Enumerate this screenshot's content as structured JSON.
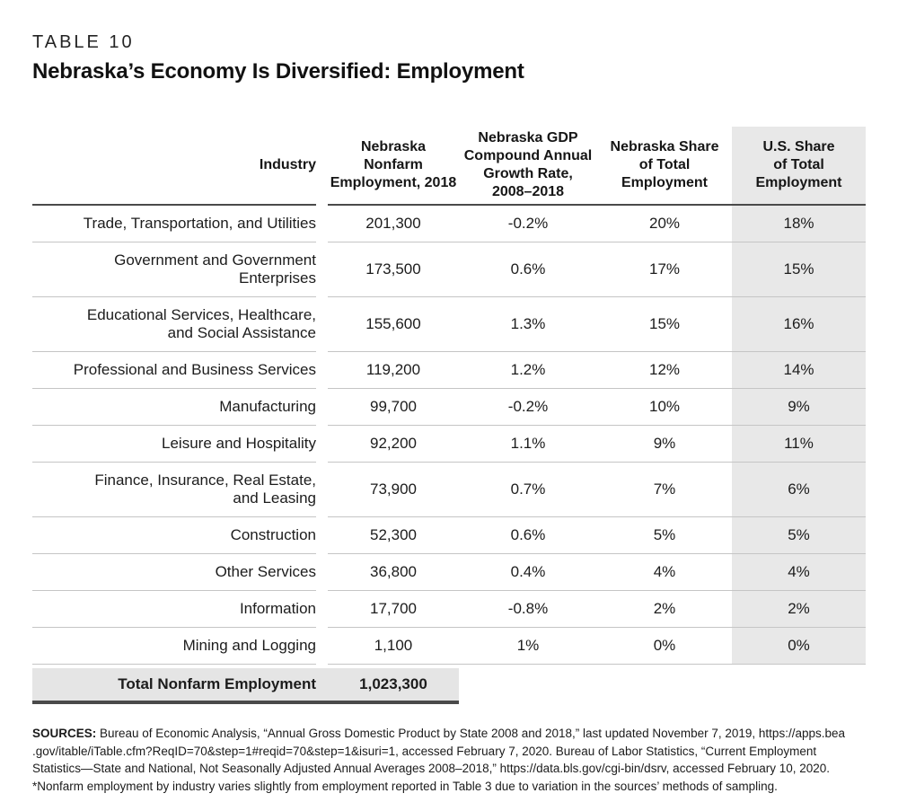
{
  "page": {
    "eyebrow": "TABLE 10",
    "title": "Nebraska’s Economy Is Diversified: Employment"
  },
  "table": {
    "header": {
      "industry": "Industry",
      "employment": "Nebraska\nNonfarm\nEmployment, 2018",
      "growth_rate": "Nebraska GDP\nCompound Annual\nGrowth Rate,\n2008–2018",
      "ne_share": "Nebraska Share\nof Total\nEmployment",
      "us_share": "U.S. Share\nof Total\nEmployment"
    },
    "rows": [
      {
        "industry": "Trade, Transportation, and Utilities",
        "employment": "201,300",
        "growth_rate": "-0.2%",
        "ne_share": "20%",
        "us_share": "18%"
      },
      {
        "industry": "Government and Government\nEnterprises",
        "employment": "173,500",
        "growth_rate": "0.6%",
        "ne_share": "17%",
        "us_share": "15%"
      },
      {
        "industry": "Educational Services, Healthcare,\nand Social Assistance",
        "employment": "155,600",
        "growth_rate": "1.3%",
        "ne_share": "15%",
        "us_share": "16%"
      },
      {
        "industry": "Professional and Business Services",
        "employment": "119,200",
        "growth_rate": "1.2%",
        "ne_share": "12%",
        "us_share": "14%"
      },
      {
        "industry": "Manufacturing",
        "employment": "99,700",
        "growth_rate": "-0.2%",
        "ne_share": "10%",
        "us_share": "9%"
      },
      {
        "industry": "Leisure and Hospitality",
        "employment": "92,200",
        "growth_rate": "1.1%",
        "ne_share": "9%",
        "us_share": "11%"
      },
      {
        "industry": "Finance, Insurance, Real Estate,\nand Leasing",
        "employment": "73,900",
        "growth_rate": "0.7%",
        "ne_share": "7%",
        "us_share": "6%"
      },
      {
        "industry": "Construction",
        "employment": "52,300",
        "growth_rate": "0.6%",
        "ne_share": "5%",
        "us_share": "5%"
      },
      {
        "industry": "Other Services",
        "employment": "36,800",
        "growth_rate": "0.4%",
        "ne_share": "4%",
        "us_share": "4%"
      },
      {
        "industry": "Information",
        "employment": "17,700",
        "growth_rate": "-0.8%",
        "ne_share": "2%",
        "us_share": "2%"
      },
      {
        "industry": "Mining and Logging",
        "employment": "1,100",
        "growth_rate": "1%",
        "ne_share": "0%",
        "us_share": "0%"
      }
    ],
    "total": {
      "label": "Total Nonfarm Employment",
      "value": "1,023,300"
    }
  },
  "footnotes": {
    "sources_label": "SOURCES:",
    "sources_text": " Bureau of Economic Analysis, “Annual Gross Domestic Product by State 2008 and 2018,” last updated November 7, 2019, https://apps.bea\n.gov/itable/iTable.cfm?ReqID=70&step=1#reqid=70&step=1&isuri=1, accessed February 7, 2020. Bureau of Labor Statistics, “Current Employment\nStatistics—State and National, Not Seasonally Adjusted Annual Averages 2008–2018,” https://data.bls.gov/cgi-bin/dsrv, accessed February 10, 2020.",
    "note": "*Nonfarm employment by industry varies slightly from employment reported in Table 3 due to variation in the sources’ methods of sampling."
  },
  "colors": {
    "shaded_column_bg": "#e8e8e8",
    "total_row_bg": "#e5e5e5",
    "dark_rule": "#4a4a4a",
    "light_rule": "#c5c5c5"
  }
}
